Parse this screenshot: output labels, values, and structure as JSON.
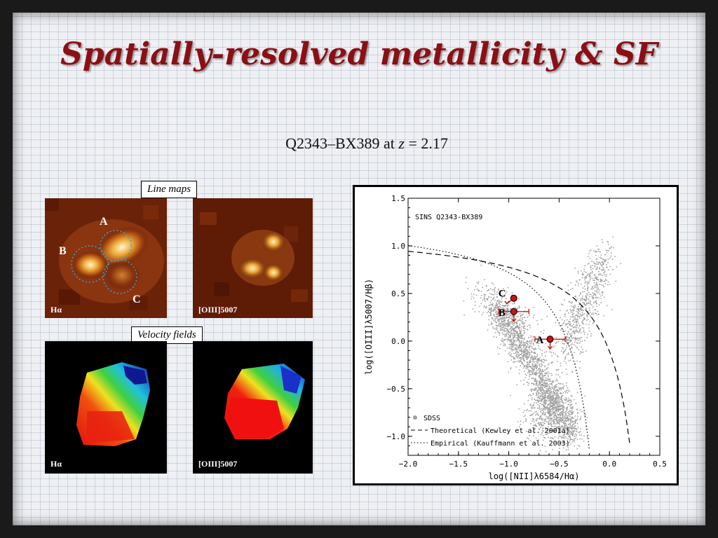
{
  "slide": {
    "title": "Spatially-resolved metallicity & SF",
    "subtitle_prefix": "Q2343–BX389 at ",
    "subtitle_z": "z",
    "subtitle_suffix": " = 2.17"
  },
  "line_maps": {
    "label": "Line maps",
    "left_panel_label": "Hα",
    "right_panel_label": "[OIII]5007",
    "regions": [
      "A",
      "B",
      "C"
    ]
  },
  "velocity_fields": {
    "label": "Velocity fields",
    "left_panel_label": "Hα",
    "right_panel_label": "[OIII]5007"
  },
  "colors": {
    "title": "#8b0f14",
    "region_circle": "#3a9fd8",
    "point_red": "#d01010",
    "sdss_gray": "#a0a0a0"
  },
  "chart_data": {
    "type": "scatter",
    "title": "SINS Q2343-BX389",
    "xlabel": "log([NII]λ6584/Hα)",
    "ylabel": "log([OIII]λ5007/Hβ)",
    "xlim": [
      -2.0,
      0.5
    ],
    "ylim": [
      -1.2,
      1.5
    ],
    "xticks": [
      -2.0,
      -1.5,
      -1.0,
      -0.5,
      0.0,
      0.5
    ],
    "yticks": [
      -1.0,
      -0.5,
      0.0,
      0.5,
      1.0,
      1.5
    ],
    "xtick_labels": [
      "−2.0",
      "−1.5",
      "−1.0",
      "−0.5",
      "0.0",
      "0.5"
    ],
    "ytick_labels": [
      "−1.0",
      "−0.5",
      "0.0",
      "0.5",
      "1.0",
      "1.5"
    ],
    "points": [
      {
        "label": "C",
        "x": -0.95,
        "y": 0.45,
        "xerr": 0,
        "upper_limit": true
      },
      {
        "label": "B",
        "x": -0.95,
        "y": 0.31,
        "xerr": 0.15,
        "upper_limit": true
      },
      {
        "label": "A",
        "x": -0.59,
        "y": 0.02,
        "xerr": 0.15,
        "upper_limit": true
      }
    ],
    "legend": [
      {
        "name": "SDSS",
        "style": "dot"
      },
      {
        "name": "Theoretical (Kewley et al. 2001a)",
        "style": "dashed"
      },
      {
        "name": "Empirical (Kauffmann et al. 2003)",
        "style": "dotted"
      }
    ],
    "legend_position": "bottom-left"
  }
}
